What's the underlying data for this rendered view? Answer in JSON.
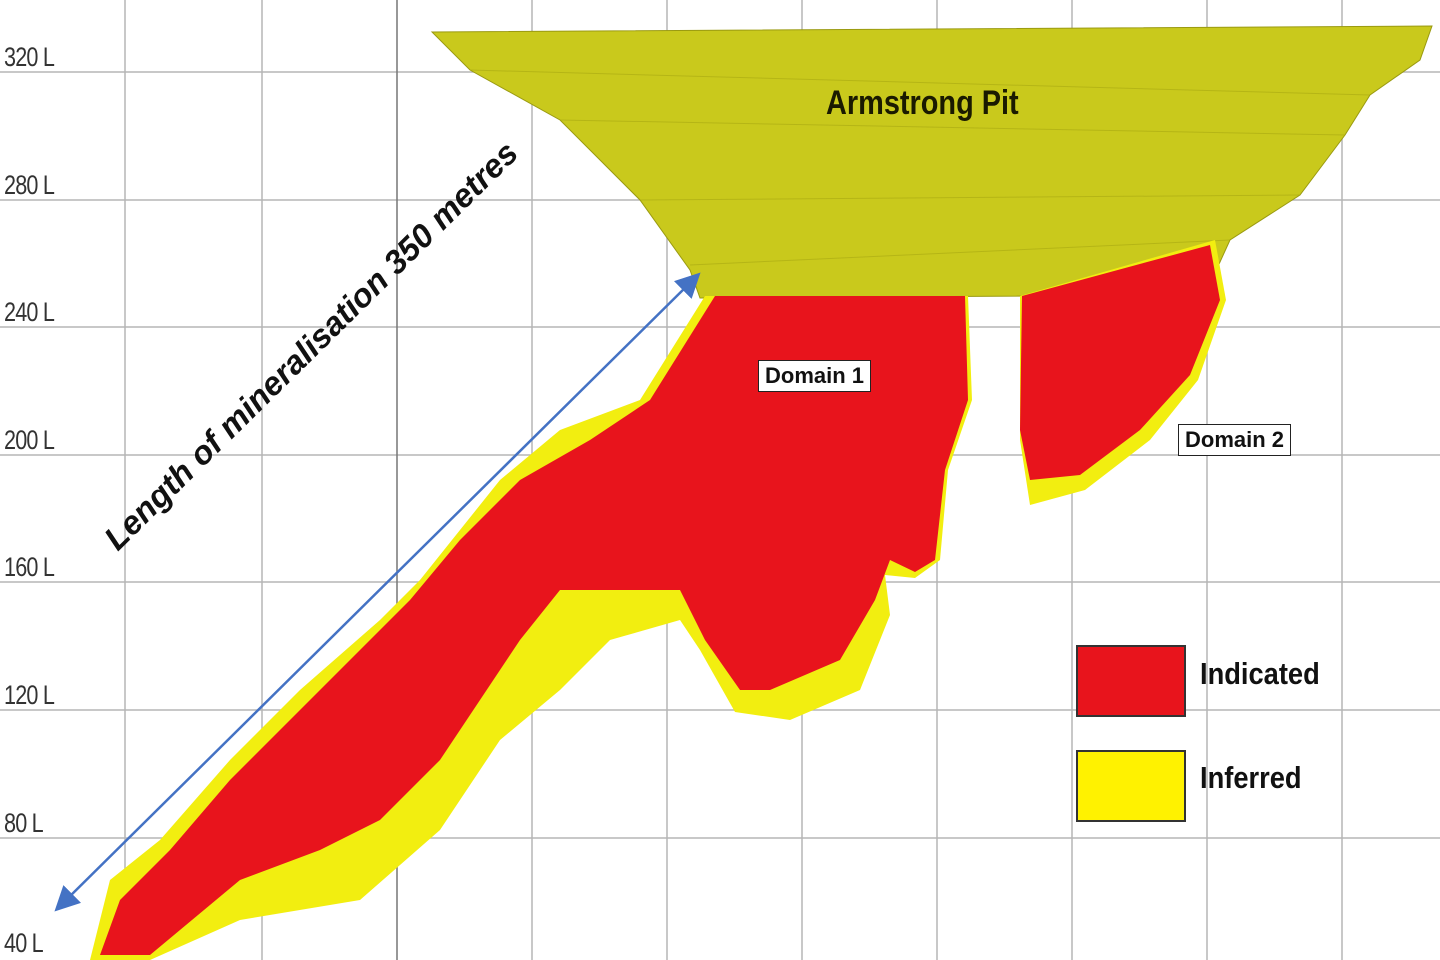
{
  "levels": [
    "320 L",
    "280 L",
    "240 L",
    "200 L",
    "160 L",
    "120 L",
    "80 L",
    "40 L"
  ],
  "labels": {
    "pit": "Armstrong Pit",
    "domain1": "Domain 1",
    "domain2": "Domain 2",
    "length": "Length of mineralisation 350 metres"
  },
  "legend": [
    {
      "label": "Indicated",
      "color": "#e8141c"
    },
    {
      "label": "Inferred",
      "color": "#fff200"
    }
  ],
  "colors": {
    "pit": "#c9c91c",
    "arrow": "#4472c4",
    "grid": "#b5b5b5"
  }
}
